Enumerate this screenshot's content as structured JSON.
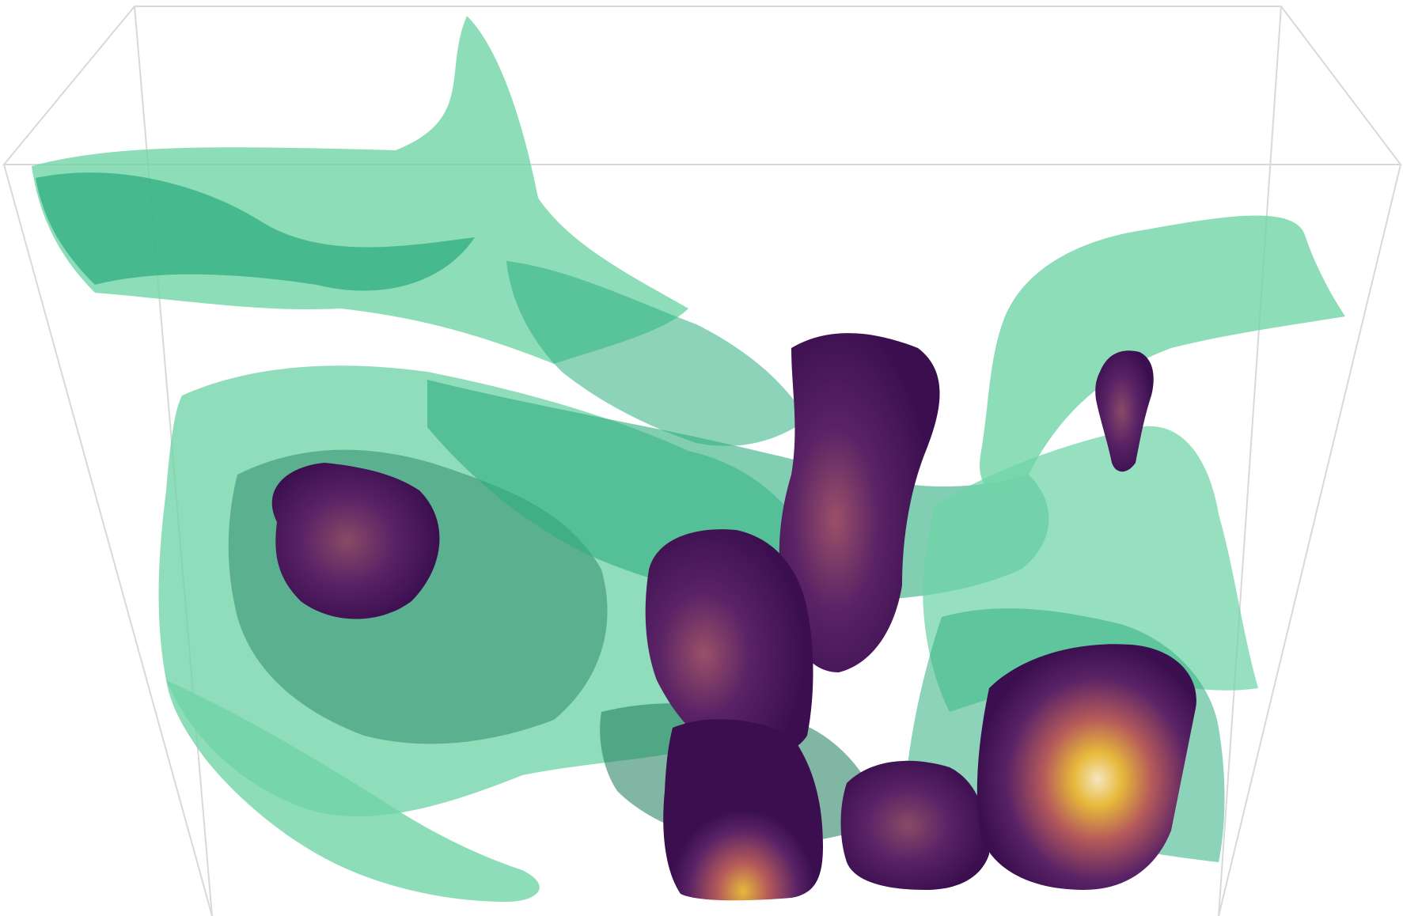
{
  "scene": {
    "colors": {
      "background": "#ffffff",
      "bounding_box": "#d9d9d9",
      "sheet_light": "#6fd4a6",
      "sheet_mid": "#2fae80",
      "sheet_dark": "#1b7a5a",
      "blob_dark": "#3b0f4f",
      "blob_mid": "#6a2a6e",
      "blob_warm": "#b55a5a",
      "blob_hot": "#e7b93a",
      "blob_core": "#f4e6c0"
    },
    "layers": [
      "bounding-box",
      "green-isosurface-sheets",
      "purple-isosurface-blobs"
    ]
  }
}
